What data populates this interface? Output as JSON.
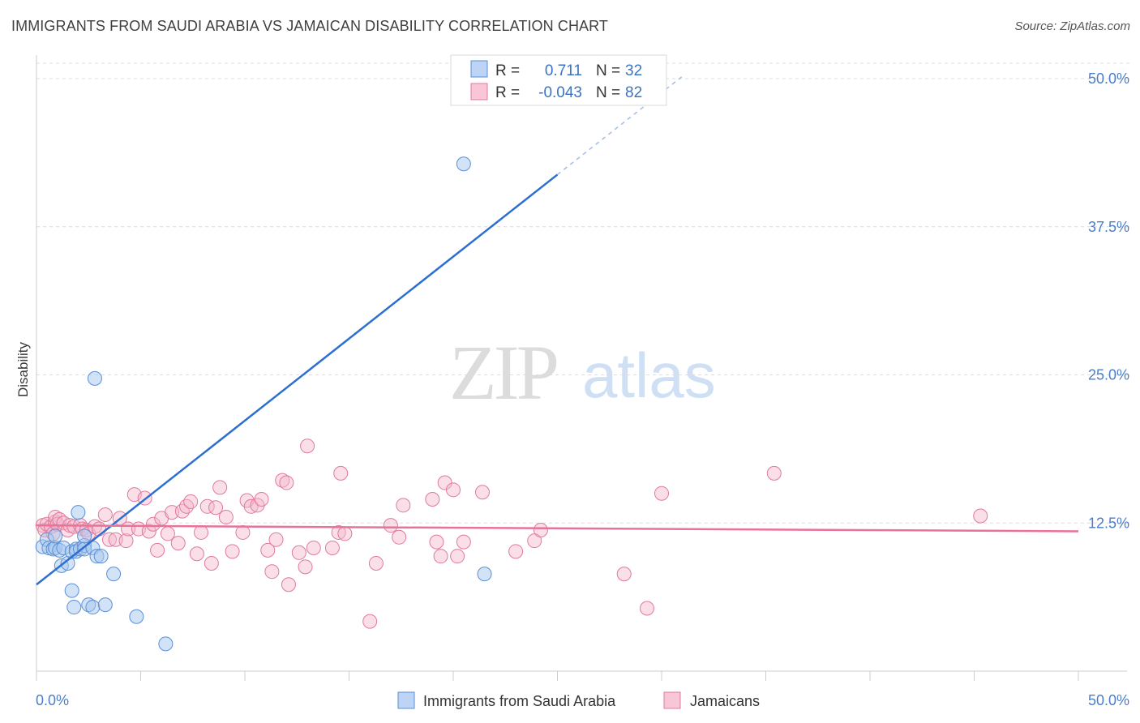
{
  "title": "IMMIGRANTS FROM SAUDI ARABIA VS JAMAICAN DISABILITY CORRELATION CHART",
  "source": "Source: ZipAtlas.com",
  "watermark": {
    "zip": "ZIP",
    "atlas": "atlas"
  },
  "legend_top": [
    {
      "r_label": "R =",
      "r_value": "0.711",
      "n_label": "N =",
      "n_value": "32"
    },
    {
      "r_label": "R =",
      "r_value": "-0.043",
      "n_label": "N =",
      "n_value": "82"
    }
  ],
  "colors": {
    "blue_fill": "#a8c8f0",
    "blue_stroke": "#5b8fd6",
    "blue_line": "#2c6fd0",
    "pink_fill": "#f5b8cc",
    "pink_stroke": "#e07a9c",
    "pink_line": "#e8739a",
    "tick_text": "#4a7ec8",
    "grid": "#dcdcdc"
  },
  "chart_data": {
    "type": "scatter",
    "title": "IMMIGRANTS FROM SAUDI ARABIA VS JAMAICAN DISABILITY CORRELATION CHART",
    "xlabel": "",
    "ylabel": "Disability",
    "xlim": [
      0,
      50
    ],
    "ylim": [
      0,
      50
    ],
    "x_tick_labels": [
      "0.0%",
      "50.0%"
    ],
    "y_ticks": [
      12.5,
      25.0,
      37.5,
      50.0
    ],
    "y_tick_labels": [
      "12.5%",
      "25.0%",
      "37.5%",
      "50.0%"
    ],
    "grid": true,
    "legend": [
      "Immigrants from Saudi Arabia",
      "Jamaicans"
    ],
    "series": [
      {
        "name": "Immigrants from Saudi Arabia",
        "color": "blue",
        "R": 0.711,
        "N": 32,
        "trend": {
          "x0": 0,
          "y0": 7.3,
          "x1": 25,
          "y1": 41.9,
          "dashed_to_x": 31,
          "dashed_to_y": 50.2
        },
        "points": [
          [
            0.3,
            10.5
          ],
          [
            0.5,
            11.1
          ],
          [
            0.6,
            10.4
          ],
          [
            0.8,
            10.3
          ],
          [
            0.9,
            10.4
          ],
          [
            0.9,
            11.4
          ],
          [
            1.1,
            10.2
          ],
          [
            1.2,
            8.9
          ],
          [
            1.3,
            10.4
          ],
          [
            1.5,
            9.1
          ],
          [
            1.7,
            10.1
          ],
          [
            1.9,
            10.3
          ],
          [
            1.7,
            6.8
          ],
          [
            1.8,
            5.4
          ],
          [
            1.9,
            10.1
          ],
          [
            2.0,
            13.4
          ],
          [
            2.1,
            10.3
          ],
          [
            2.3,
            10.6
          ],
          [
            2.3,
            10.3
          ],
          [
            2.3,
            11.4
          ],
          [
            2.5,
            5.6
          ],
          [
            2.7,
            10.4
          ],
          [
            2.7,
            5.4
          ],
          [
            2.8,
            24.7
          ],
          [
            2.9,
            9.7
          ],
          [
            3.1,
            9.7
          ],
          [
            3.3,
            5.6
          ],
          [
            3.7,
            8.2
          ],
          [
            4.8,
            4.6
          ],
          [
            6.2,
            2.3
          ],
          [
            20.5,
            42.8
          ],
          [
            21.5,
            8.2
          ]
        ]
      },
      {
        "name": "Jamaicans",
        "color": "pink",
        "R": -0.043,
        "N": 82,
        "trend": {
          "x0": 0,
          "y0": 12.3,
          "x1": 50,
          "y1": 11.8
        },
        "points": [
          [
            0.3,
            12.3
          ],
          [
            0.4,
            11.9
          ],
          [
            0.5,
            12.4
          ],
          [
            0.7,
            12.2
          ],
          [
            0.8,
            11.6
          ],
          [
            0.9,
            12.6
          ],
          [
            0.9,
            13.0
          ],
          [
            1.0,
            12.4
          ],
          [
            1.1,
            12.8
          ],
          [
            1.3,
            12.5
          ],
          [
            1.5,
            11.9
          ],
          [
            1.6,
            12.3
          ],
          [
            1.8,
            12.2
          ],
          [
            2.1,
            12.3
          ],
          [
            2.2,
            12.0
          ],
          [
            2.4,
            11.9
          ],
          [
            2.5,
            11.6
          ],
          [
            2.8,
            12.2
          ],
          [
            3.0,
            12.0
          ],
          [
            3.3,
            13.2
          ],
          [
            3.5,
            11.1
          ],
          [
            3.8,
            11.1
          ],
          [
            4.0,
            12.9
          ],
          [
            4.3,
            11.0
          ],
          [
            4.4,
            12.0
          ],
          [
            4.7,
            14.9
          ],
          [
            4.9,
            12.0
          ],
          [
            5.2,
            14.6
          ],
          [
            5.4,
            11.8
          ],
          [
            5.6,
            12.4
          ],
          [
            5.8,
            10.2
          ],
          [
            6.0,
            12.9
          ],
          [
            6.3,
            11.6
          ],
          [
            6.5,
            13.4
          ],
          [
            6.8,
            10.8
          ],
          [
            7.0,
            13.5
          ],
          [
            7.2,
            13.9
          ],
          [
            7.4,
            14.3
          ],
          [
            7.7,
            9.9
          ],
          [
            7.9,
            11.7
          ],
          [
            8.2,
            13.9
          ],
          [
            8.4,
            9.1
          ],
          [
            8.6,
            13.8
          ],
          [
            8.8,
            15.5
          ],
          [
            9.1,
            13.0
          ],
          [
            9.4,
            10.1
          ],
          [
            9.9,
            11.7
          ],
          [
            10.1,
            14.4
          ],
          [
            10.3,
            13.9
          ],
          [
            10.6,
            14.0
          ],
          [
            10.8,
            14.5
          ],
          [
            11.1,
            10.2
          ],
          [
            11.3,
            8.4
          ],
          [
            11.5,
            11.1
          ],
          [
            11.8,
            16.1
          ],
          [
            12.0,
            15.9
          ],
          [
            12.1,
            7.3
          ],
          [
            12.6,
            10.0
          ],
          [
            12.9,
            8.8
          ],
          [
            13.0,
            19.0
          ],
          [
            13.3,
            10.4
          ],
          [
            14.2,
            10.4
          ],
          [
            14.5,
            11.7
          ],
          [
            14.6,
            16.7
          ],
          [
            14.8,
            11.6
          ],
          [
            16.0,
            4.2
          ],
          [
            16.3,
            9.1
          ],
          [
            17.0,
            12.3
          ],
          [
            17.4,
            11.3
          ],
          [
            17.6,
            14.0
          ],
          [
            19.0,
            14.5
          ],
          [
            19.2,
            10.9
          ],
          [
            19.4,
            9.7
          ],
          [
            19.6,
            15.9
          ],
          [
            20.0,
            15.3
          ],
          [
            20.2,
            9.7
          ],
          [
            20.5,
            10.9
          ],
          [
            21.4,
            15.1
          ],
          [
            23.0,
            10.1
          ],
          [
            23.9,
            11.0
          ],
          [
            24.2,
            11.9
          ],
          [
            30.0,
            15.0
          ]
        ],
        "extra_points": [
          [
            28.2,
            8.2
          ],
          [
            29.3,
            5.3
          ],
          [
            35.4,
            16.7
          ],
          [
            45.3,
            13.1
          ]
        ]
      }
    ]
  },
  "bottom_legend": [
    {
      "label": "Immigrants from Saudi Arabia",
      "color": "blue"
    },
    {
      "label": "Jamaicans",
      "color": "pink"
    }
  ]
}
